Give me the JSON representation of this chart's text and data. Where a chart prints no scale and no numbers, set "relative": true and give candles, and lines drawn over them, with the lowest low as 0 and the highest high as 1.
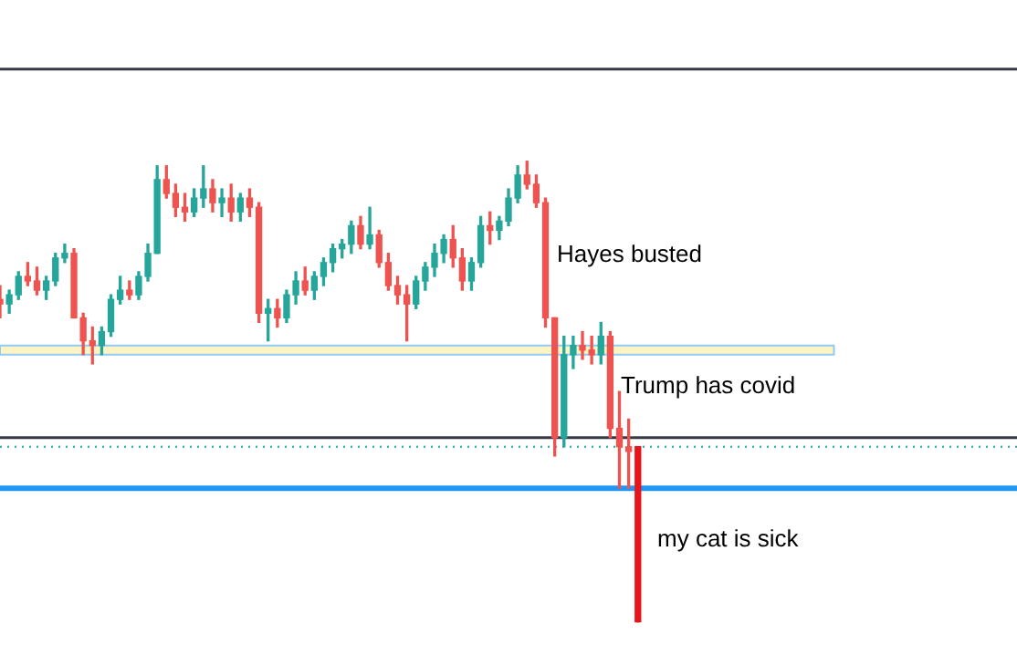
{
  "chart_data": {
    "type": "candlestick",
    "relative": true,
    "categories": [
      null,
      null,
      null,
      null,
      null,
      null,
      null,
      null,
      null,
      null,
      null,
      null,
      null,
      null,
      null,
      null,
      null,
      null,
      null,
      null,
      null,
      null,
      null,
      null,
      null,
      null,
      null,
      null,
      null,
      null,
      null,
      null,
      null,
      null,
      null,
      null,
      null,
      null,
      null,
      null,
      null,
      null,
      null,
      null,
      null,
      null,
      null,
      null,
      null,
      null,
      null,
      null,
      null,
      null,
      null,
      null,
      null,
      null,
      null,
      null,
      null,
      null,
      null,
      null,
      null,
      null,
      null,
      null,
      null,
      null,
      null,
      null,
      null,
      null,
      null,
      null,
      null,
      null,
      null,
      null,
      null,
      null,
      null,
      null,
      null,
      null,
      null,
      null,
      null,
      null,
      null,
      null,
      null,
      null,
      null,
      null,
      null,
      null,
      null,
      null,
      null,
      null,
      null,
      null,
      null,
      null,
      null,
      null,
      null,
      null,
      null
    ],
    "ohlc": [
      [
        0.7,
        0.73,
        0.66,
        0.69
      ],
      [
        0.69,
        0.72,
        0.67,
        0.71
      ],
      [
        0.71,
        0.76,
        0.7,
        0.75
      ],
      [
        0.75,
        0.78,
        0.73,
        0.74
      ],
      [
        0.74,
        0.77,
        0.71,
        0.72
      ],
      [
        0.72,
        0.75,
        0.7,
        0.74
      ],
      [
        0.74,
        0.8,
        0.73,
        0.79
      ],
      [
        0.79,
        0.82,
        0.78,
        0.8
      ],
      [
        0.8,
        0.81,
        0.66,
        0.66
      ],
      [
        0.66,
        0.67,
        0.58,
        0.61
      ],
      [
        0.61,
        0.64,
        0.56,
        0.6
      ],
      [
        0.6,
        0.64,
        0.58,
        0.63
      ],
      [
        0.63,
        0.71,
        0.62,
        0.7
      ],
      [
        0.7,
        0.75,
        0.69,
        0.72
      ],
      [
        0.72,
        0.74,
        0.7,
        0.71
      ],
      [
        0.71,
        0.76,
        0.7,
        0.75
      ],
      [
        0.75,
        0.82,
        0.74,
        0.8
      ],
      [
        0.8,
        0.99,
        0.8,
        0.96
      ],
      [
        0.96,
        0.99,
        0.92,
        0.93
      ],
      [
        0.93,
        0.95,
        0.88,
        0.9
      ],
      [
        0.9,
        0.93,
        0.87,
        0.89
      ],
      [
        0.89,
        0.94,
        0.88,
        0.92
      ],
      [
        0.92,
        0.99,
        0.9,
        0.94
      ],
      [
        0.94,
        0.96,
        0.89,
        0.91
      ],
      [
        0.91,
        0.94,
        0.88,
        0.92
      ],
      [
        0.92,
        0.95,
        0.87,
        0.89
      ],
      [
        0.89,
        0.93,
        0.87,
        0.92
      ],
      [
        0.92,
        0.94,
        0.88,
        0.9
      ],
      [
        0.9,
        0.91,
        0.65,
        0.67
      ],
      [
        0.67,
        0.7,
        0.61,
        0.68
      ],
      [
        0.68,
        0.7,
        0.64,
        0.66
      ],
      [
        0.66,
        0.72,
        0.65,
        0.71
      ],
      [
        0.71,
        0.76,
        0.69,
        0.74
      ],
      [
        0.74,
        0.77,
        0.71,
        0.72
      ],
      [
        0.72,
        0.76,
        0.7,
        0.75
      ],
      [
        0.75,
        0.79,
        0.73,
        0.78
      ],
      [
        0.78,
        0.82,
        0.76,
        0.81
      ],
      [
        0.81,
        0.83,
        0.79,
        0.82
      ],
      [
        0.82,
        0.87,
        0.8,
        0.86
      ],
      [
        0.86,
        0.88,
        0.81,
        0.82
      ],
      [
        0.82,
        0.9,
        0.81,
        0.84
      ],
      [
        0.84,
        0.85,
        0.77,
        0.78
      ],
      [
        0.78,
        0.8,
        0.72,
        0.73
      ],
      [
        0.73,
        0.75,
        0.69,
        0.71
      ],
      [
        0.71,
        0.73,
        0.61,
        0.69
      ],
      [
        0.69,
        0.75,
        0.68,
        0.74
      ],
      [
        0.74,
        0.78,
        0.72,
        0.77
      ],
      [
        0.77,
        0.82,
        0.75,
        0.8
      ],
      [
        0.8,
        0.84,
        0.78,
        0.83
      ],
      [
        0.83,
        0.86,
        0.77,
        0.79
      ],
      [
        0.79,
        0.81,
        0.72,
        0.74
      ],
      [
        0.74,
        0.79,
        0.72,
        0.78
      ],
      [
        0.78,
        0.88,
        0.77,
        0.86
      ],
      [
        0.86,
        0.89,
        0.82,
        0.85
      ],
      [
        0.85,
        0.88,
        0.83,
        0.87
      ],
      [
        0.87,
        0.94,
        0.86,
        0.92
      ],
      [
        0.92,
        0.99,
        0.91,
        0.97
      ],
      [
        0.97,
        1.0,
        0.94,
        0.95
      ],
      [
        0.95,
        0.97,
        0.9,
        0.91
      ],
      [
        0.91,
        0.92,
        0.64,
        0.66
      ],
      [
        0.66,
        0.66,
        0.36,
        0.4
      ],
      [
        0.4,
        0.62,
        0.38,
        0.58
      ],
      [
        0.58,
        0.62,
        0.55,
        0.6
      ],
      [
        0.6,
        0.63,
        0.57,
        0.59
      ],
      [
        0.59,
        0.62,
        0.56,
        0.58
      ],
      [
        0.58,
        0.65,
        0.56,
        0.62
      ],
      [
        0.62,
        0.63,
        0.4,
        0.42
      ],
      [
        0.42,
        0.5,
        0.29,
        0.38
      ],
      [
        0.38,
        0.44,
        0.29,
        0.37
      ],
      [
        0.38,
        0.38,
        0.0,
        0.0
      ],
      null,
      null,
      null,
      null,
      null,
      null,
      null,
      null,
      null,
      null,
      null,
      null,
      null,
      null,
      null,
      null,
      null,
      null,
      null,
      null,
      null,
      null,
      null,
      null,
      null,
      null,
      null,
      null,
      null,
      null,
      null,
      null,
      null,
      null,
      null,
      null,
      null,
      null,
      null,
      null,
      null
    ],
    "colors": [
      "#ef5350",
      "#26a69a",
      "#26a69a",
      "#ef5350",
      "#ef5350",
      "#26a69a",
      "#26a69a",
      "#26a69a",
      "#ef5350",
      "#ef5350",
      "#ef5350",
      "#26a69a",
      "#26a69a",
      "#26a69a",
      "#ef5350",
      "#26a69a",
      "#26a69a",
      "#26a69a",
      "#ef5350",
      "#ef5350",
      "#ef5350",
      "#26a69a",
      "#26a69a",
      "#ef5350",
      "#26a69a",
      "#ef5350",
      "#26a69a",
      "#ef5350",
      "#ef5350",
      "#26a69a",
      "#ef5350",
      "#26a69a",
      "#26a69a",
      "#ef5350",
      "#26a69a",
      "#26a69a",
      "#26a69a",
      "#26a69a",
      "#26a69a",
      "#ef5350",
      "#26a69a",
      "#ef5350",
      "#ef5350",
      "#ef5350",
      "#ef5350",
      "#26a69a",
      "#26a69a",
      "#26a69a",
      "#26a69a",
      "#ef5350",
      "#ef5350",
      "#26a69a",
      "#26a69a",
      "#ef5350",
      "#26a69a",
      "#26a69a",
      "#26a69a",
      "#ef5350",
      "#ef5350",
      "#ef5350",
      "#ef5350",
      "#26a69a",
      "#26a69a",
      "#ef5350",
      "#ef5350",
      "#26a69a",
      "#ef5350",
      "#ef5350",
      "#ef5350",
      "#e8141c",
      null,
      null,
      null,
      null,
      null,
      null,
      null,
      null,
      null,
      null,
      null,
      null,
      null,
      null,
      null,
      null,
      null,
      null,
      null,
      null,
      null,
      null,
      null,
      null,
      null,
      null,
      null,
      null,
      null,
      null,
      null,
      null,
      null,
      null,
      null,
      null,
      null,
      null,
      null,
      null,
      null
    ],
    "ref_lines": [
      {
        "axis": "y",
        "value": 1.2,
        "color": "#363a45"
      },
      {
        "axis": "y",
        "value": 0.4,
        "color": "#363a45"
      },
      {
        "axis": "y",
        "value": 0.38,
        "color": "#26a69a",
        "line_style": "dotted"
      },
      {
        "axis": "y",
        "value": 0.29,
        "color": "#2196f3"
      }
    ],
    "bands": [
      {
        "axis": "y",
        "from": 0.58,
        "to": 0.6,
        "color": "#fff4c2"
      }
    ],
    "annotations": [
      "Hayes busted",
      "Trump has covid",
      "my cat is sick"
    ],
    "legend": false
  }
}
